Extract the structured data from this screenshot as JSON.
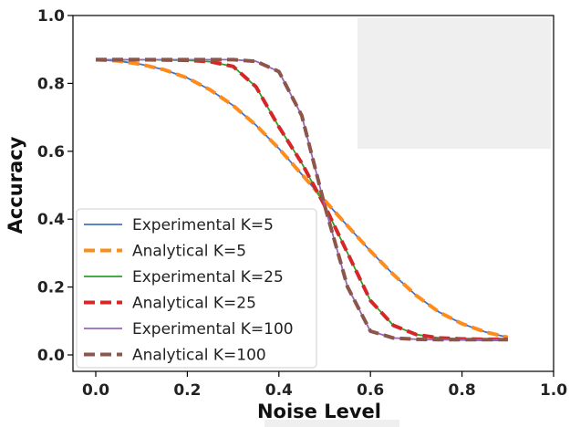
{
  "chart_data": {
    "type": "line",
    "title": "",
    "xlabel": "Noise Level",
    "ylabel": "Accuracy",
    "xlim": [
      0.0,
      1.0
    ],
    "ylim": [
      0.0,
      1.0
    ],
    "xticks": [
      "0.0",
      "0.2",
      "0.4",
      "0.6",
      "0.8",
      "1.0"
    ],
    "yticks": [
      "0.0",
      "0.2",
      "0.4",
      "0.6",
      "0.8",
      "1.0"
    ],
    "grid": false,
    "legend_position": "lower-left",
    "x": [
      0.0,
      0.05,
      0.1,
      0.15,
      0.2,
      0.25,
      0.3,
      0.35,
      0.4,
      0.45,
      0.5,
      0.55,
      0.6,
      0.65,
      0.7,
      0.75,
      0.8,
      0.85,
      0.9
    ],
    "series": [
      {
        "name": "Experimental K=5",
        "color": "#4472c4",
        "style": "solid",
        "values": [
          0.87,
          0.866,
          0.856,
          0.84,
          0.816,
          0.781,
          0.735,
          0.677,
          0.608,
          0.532,
          0.455,
          0.38,
          0.306,
          0.237,
          0.175,
          0.126,
          0.092,
          0.068,
          0.052
        ]
      },
      {
        "name": "Analytical K=5",
        "color": "#ff8c1a",
        "style": "dashed",
        "values": [
          0.87,
          0.866,
          0.856,
          0.84,
          0.816,
          0.781,
          0.735,
          0.677,
          0.608,
          0.532,
          0.455,
          0.38,
          0.306,
          0.237,
          0.175,
          0.126,
          0.092,
          0.068,
          0.052
        ]
      },
      {
        "name": "Experimental K=25",
        "color": "#2ca02c",
        "style": "solid",
        "values": [
          0.87,
          0.87,
          0.87,
          0.869,
          0.868,
          0.864,
          0.85,
          0.79,
          0.672,
          0.565,
          0.44,
          0.3,
          0.16,
          0.087,
          0.06,
          0.05,
          0.047,
          0.046,
          0.046
        ]
      },
      {
        "name": "Analytical K=25",
        "color": "#d62728",
        "style": "dashed",
        "values": [
          0.87,
          0.87,
          0.87,
          0.869,
          0.868,
          0.864,
          0.85,
          0.79,
          0.672,
          0.565,
          0.44,
          0.3,
          0.16,
          0.087,
          0.06,
          0.05,
          0.047,
          0.046,
          0.046
        ]
      },
      {
        "name": "Experimental K=100",
        "color": "#9467bd",
        "style": "solid",
        "values": [
          0.87,
          0.87,
          0.87,
          0.87,
          0.87,
          0.87,
          0.87,
          0.865,
          0.835,
          0.705,
          0.44,
          0.2,
          0.07,
          0.05,
          0.046,
          0.045,
          0.045,
          0.045,
          0.045
        ]
      },
      {
        "name": "Analytical K=100",
        "color": "#8c564b",
        "style": "dashed",
        "values": [
          0.87,
          0.87,
          0.87,
          0.87,
          0.87,
          0.87,
          0.87,
          0.865,
          0.835,
          0.705,
          0.44,
          0.2,
          0.07,
          0.05,
          0.046,
          0.045,
          0.045,
          0.045,
          0.045
        ]
      }
    ]
  }
}
